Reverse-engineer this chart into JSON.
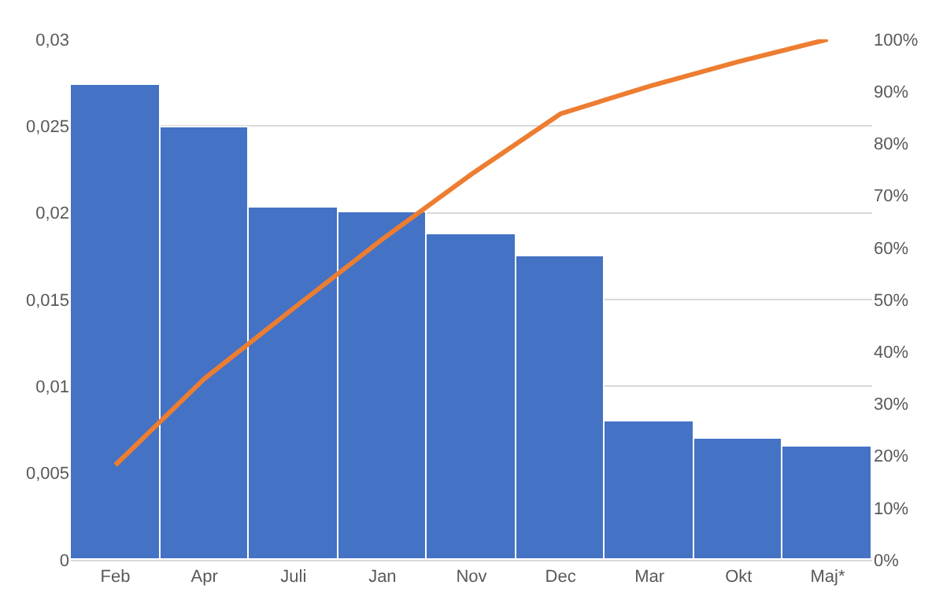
{
  "chart_data": {
    "type": "bar",
    "categories": [
      "Feb",
      "Apr",
      "Juli",
      "Jan",
      "Nov",
      "Dec",
      "Mar",
      "Okt",
      "Maj*"
    ],
    "series": [
      {
        "color": "#4472c4",
        "values": [
          0.0274,
          0.0249,
          0.0203,
          0.02,
          0.0188,
          0.0175,
          0.008,
          0.007,
          0.0065
        ]
      },
      {
        "type": "line",
        "axis": "y2",
        "color": "#ed7d31",
        "values": [
          18.2,
          34.8,
          48.3,
          61.6,
          74.1,
          85.7,
          91.0,
          95.7,
          100
        ]
      }
    ],
    "ylim": [
      0,
      0.03
    ],
    "yticks": [
      0,
      {
        "value": 0.005,
        "label": "0,005"
      },
      {
        "value": 0.01,
        "label": "0,01"
      },
      {
        "value": 0.015,
        "label": "0,015"
      },
      {
        "value": 0.02,
        "label": "0,02"
      },
      {
        "value": 0.025,
        "label": "0,025"
      },
      {
        "value": 0.03,
        "label": "0,03"
      }
    ],
    "y2lim": [
      0,
      100
    ],
    "y2ticks": [
      {
        "value": 0,
        "label": "0%"
      },
      {
        "value": 10,
        "label": "10%"
      },
      {
        "value": 20,
        "label": "20%"
      },
      {
        "value": 30,
        "label": "30%"
      },
      {
        "value": 40,
        "label": "40%"
      },
      {
        "value": 50,
        "label": "50%"
      },
      {
        "value": 60,
        "label": "60%"
      },
      {
        "value": 70,
        "label": "70%"
      },
      {
        "value": 80,
        "label": "80%"
      },
      {
        "value": 90,
        "label": "90%"
      },
      {
        "value": 100,
        "label": "100%"
      }
    ],
    "grid": "y",
    "marker": "none",
    "line_style": "solid"
  }
}
